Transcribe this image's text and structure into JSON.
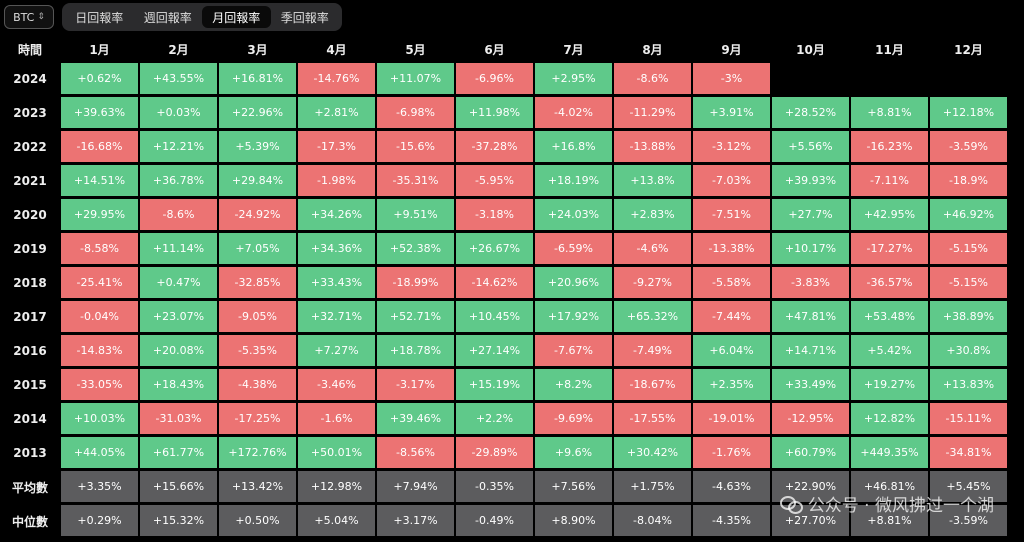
{
  "asset_selector": {
    "value": "BTC",
    "chevron_icon": "chevron-updown-icon"
  },
  "tabs": [
    {
      "label": "日回報率",
      "active": false
    },
    {
      "label": "週回報率",
      "active": false
    },
    {
      "label": "月回報率",
      "active": true
    },
    {
      "label": "季回報率",
      "active": false
    }
  ],
  "table": {
    "corner_label": "時間",
    "months": [
      "1月",
      "2月",
      "3月",
      "4月",
      "5月",
      "6月",
      "7月",
      "8月",
      "9月",
      "10月",
      "11月",
      "12月"
    ],
    "rows": [
      {
        "year": "2024",
        "values": [
          "+0.62%",
          "+43.55%",
          "+16.81%",
          "-14.76%",
          "+11.07%",
          "-6.96%",
          "+2.95%",
          "-8.6%",
          "-3%",
          "",
          "",
          ""
        ]
      },
      {
        "year": "2023",
        "values": [
          "+39.63%",
          "+0.03%",
          "+22.96%",
          "+2.81%",
          "-6.98%",
          "+11.98%",
          "-4.02%",
          "-11.29%",
          "+3.91%",
          "+28.52%",
          "+8.81%",
          "+12.18%"
        ]
      },
      {
        "year": "2022",
        "values": [
          "-16.68%",
          "+12.21%",
          "+5.39%",
          "-17.3%",
          "-15.6%",
          "-37.28%",
          "+16.8%",
          "-13.88%",
          "-3.12%",
          "+5.56%",
          "-16.23%",
          "-3.59%"
        ]
      },
      {
        "year": "2021",
        "values": [
          "+14.51%",
          "+36.78%",
          "+29.84%",
          "-1.98%",
          "-35.31%",
          "-5.95%",
          "+18.19%",
          "+13.8%",
          "-7.03%",
          "+39.93%",
          "-7.11%",
          "-18.9%"
        ]
      },
      {
        "year": "2020",
        "values": [
          "+29.95%",
          "-8.6%",
          "-24.92%",
          "+34.26%",
          "+9.51%",
          "-3.18%",
          "+24.03%",
          "+2.83%",
          "-7.51%",
          "+27.7%",
          "+42.95%",
          "+46.92%"
        ]
      },
      {
        "year": "2019",
        "values": [
          "-8.58%",
          "+11.14%",
          "+7.05%",
          "+34.36%",
          "+52.38%",
          "+26.67%",
          "-6.59%",
          "-4.6%",
          "-13.38%",
          "+10.17%",
          "-17.27%",
          "-5.15%"
        ]
      },
      {
        "year": "2018",
        "values": [
          "-25.41%",
          "+0.47%",
          "-32.85%",
          "+33.43%",
          "-18.99%",
          "-14.62%",
          "+20.96%",
          "-9.27%",
          "-5.58%",
          "-3.83%",
          "-36.57%",
          "-5.15%"
        ]
      },
      {
        "year": "2017",
        "values": [
          "-0.04%",
          "+23.07%",
          "-9.05%",
          "+32.71%",
          "+52.71%",
          "+10.45%",
          "+17.92%",
          "+65.32%",
          "-7.44%",
          "+47.81%",
          "+53.48%",
          "+38.89%"
        ]
      },
      {
        "year": "2016",
        "values": [
          "-14.83%",
          "+20.08%",
          "-5.35%",
          "+7.27%",
          "+18.78%",
          "+27.14%",
          "-7.67%",
          "-7.49%",
          "+6.04%",
          "+14.71%",
          "+5.42%",
          "+30.8%"
        ]
      },
      {
        "year": "2015",
        "values": [
          "-33.05%",
          "+18.43%",
          "-4.38%",
          "-3.46%",
          "-3.17%",
          "+15.19%",
          "+8.2%",
          "-18.67%",
          "+2.35%",
          "+33.49%",
          "+19.27%",
          "+13.83%"
        ]
      },
      {
        "year": "2014",
        "values": [
          "+10.03%",
          "-31.03%",
          "-17.25%",
          "-1.6%",
          "+39.46%",
          "+2.2%",
          "-9.69%",
          "-17.55%",
          "-19.01%",
          "-12.95%",
          "+12.82%",
          "-15.11%"
        ]
      },
      {
        "year": "2013",
        "values": [
          "+44.05%",
          "+61.77%",
          "+172.76%",
          "+50.01%",
          "-8.56%",
          "-29.89%",
          "+9.6%",
          "+30.42%",
          "-1.76%",
          "+60.79%",
          "+449.35%",
          "-34.81%"
        ]
      }
    ],
    "stats": [
      {
        "label": "平均數",
        "values": [
          "+3.35%",
          "+15.66%",
          "+13.42%",
          "+12.98%",
          "+7.94%",
          "-0.35%",
          "+7.56%",
          "+1.75%",
          "-4.63%",
          "+22.90%",
          "+46.81%",
          "+5.45%"
        ]
      },
      {
        "label": "中位數",
        "values": [
          "+0.29%",
          "+15.32%",
          "+0.50%",
          "+5.04%",
          "+3.17%",
          "-0.49%",
          "+8.90%",
          "-8.04%",
          "-4.35%",
          "+27.70%",
          "+8.81%",
          "-3.59%"
        ]
      }
    ]
  },
  "colors": {
    "positive": "#5fc98a",
    "negative": "#ec7373",
    "stat_bg": "#5c5c5e",
    "background": "#000000"
  },
  "watermark": {
    "text": "公众号 · 微风拂过一个湖",
    "icon": "wechat-icon"
  }
}
